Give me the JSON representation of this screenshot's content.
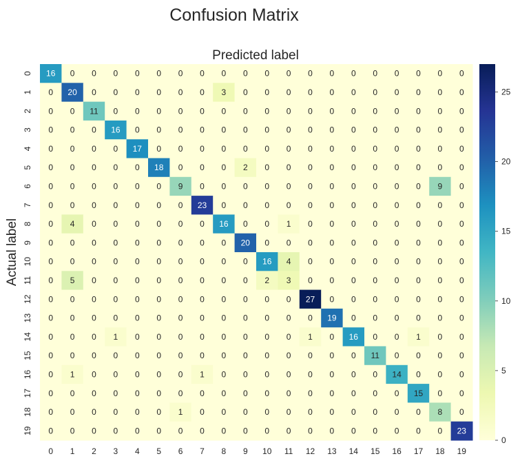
{
  "chart_data": {
    "type": "heatmap",
    "title": "Confusion Matrix",
    "xlabel": "Predicted label",
    "ylabel": "Actual label",
    "x_categories": [
      "0",
      "1",
      "2",
      "3",
      "4",
      "5",
      "6",
      "7",
      "8",
      "9",
      "10",
      "11",
      "12",
      "13",
      "14",
      "15",
      "16",
      "17",
      "18",
      "19"
    ],
    "y_categories": [
      "0",
      "1",
      "2",
      "3",
      "4",
      "5",
      "6",
      "7",
      "8",
      "9",
      "10",
      "11",
      "12",
      "13",
      "14",
      "15",
      "16",
      "17",
      "18",
      "19"
    ],
    "values": [
      [
        16,
        0,
        0,
        0,
        0,
        0,
        0,
        0,
        0,
        0,
        0,
        0,
        0,
        0,
        0,
        0,
        0,
        0,
        0,
        0
      ],
      [
        0,
        20,
        0,
        0,
        0,
        0,
        0,
        0,
        3,
        0,
        0,
        0,
        0,
        0,
        0,
        0,
        0,
        0,
        0,
        0
      ],
      [
        0,
        0,
        11,
        0,
        0,
        0,
        0,
        0,
        0,
        0,
        0,
        0,
        0,
        0,
        0,
        0,
        0,
        0,
        0,
        0
      ],
      [
        0,
        0,
        0,
        16,
        0,
        0,
        0,
        0,
        0,
        0,
        0,
        0,
        0,
        0,
        0,
        0,
        0,
        0,
        0,
        0
      ],
      [
        0,
        0,
        0,
        0,
        17,
        0,
        0,
        0,
        0,
        0,
        0,
        0,
        0,
        0,
        0,
        0,
        0,
        0,
        0,
        0
      ],
      [
        0,
        0,
        0,
        0,
        0,
        18,
        0,
        0,
        0,
        2,
        0,
        0,
        0,
        0,
        0,
        0,
        0,
        0,
        0,
        0
      ],
      [
        0,
        0,
        0,
        0,
        0,
        0,
        9,
        0,
        0,
        0,
        0,
        0,
        0,
        0,
        0,
        0,
        0,
        0,
        9,
        0
      ],
      [
        0,
        0,
        0,
        0,
        0,
        0,
        0,
        23,
        0,
        0,
        0,
        0,
        0,
        0,
        0,
        0,
        0,
        0,
        0,
        0
      ],
      [
        0,
        4,
        0,
        0,
        0,
        0,
        0,
        0,
        16,
        0,
        0,
        1,
        0,
        0,
        0,
        0,
        0,
        0,
        0,
        0
      ],
      [
        0,
        0,
        0,
        0,
        0,
        0,
        0,
        0,
        0,
        20,
        0,
        0,
        0,
        0,
        0,
        0,
        0,
        0,
        0,
        0
      ],
      [
        0,
        0,
        0,
        0,
        0,
        0,
        0,
        0,
        0,
        0,
        16,
        4,
        0,
        0,
        0,
        0,
        0,
        0,
        0,
        0
      ],
      [
        0,
        5,
        0,
        0,
        0,
        0,
        0,
        0,
        0,
        0,
        2,
        3,
        0,
        0,
        0,
        0,
        0,
        0,
        0,
        0
      ],
      [
        0,
        0,
        0,
        0,
        0,
        0,
        0,
        0,
        0,
        0,
        0,
        0,
        27,
        0,
        0,
        0,
        0,
        0,
        0,
        0
      ],
      [
        0,
        0,
        0,
        0,
        0,
        0,
        0,
        0,
        0,
        0,
        0,
        0,
        0,
        19,
        0,
        0,
        0,
        0,
        0,
        0
      ],
      [
        0,
        0,
        0,
        1,
        0,
        0,
        0,
        0,
        0,
        0,
        0,
        0,
        1,
        0,
        16,
        0,
        0,
        1,
        0,
        0
      ],
      [
        0,
        0,
        0,
        0,
        0,
        0,
        0,
        0,
        0,
        0,
        0,
        0,
        0,
        0,
        0,
        11,
        0,
        0,
        0,
        0
      ],
      [
        0,
        1,
        0,
        0,
        0,
        0,
        0,
        1,
        0,
        0,
        0,
        0,
        0,
        0,
        0,
        0,
        14,
        0,
        0,
        0
      ],
      [
        0,
        0,
        0,
        0,
        0,
        0,
        0,
        0,
        0,
        0,
        0,
        0,
        0,
        0,
        0,
        0,
        0,
        15,
        0,
        0
      ],
      [
        0,
        0,
        0,
        0,
        0,
        0,
        1,
        0,
        0,
        0,
        0,
        0,
        0,
        0,
        0,
        0,
        0,
        0,
        8,
        0
      ],
      [
        0,
        0,
        0,
        0,
        0,
        0,
        0,
        0,
        0,
        0,
        0,
        0,
        0,
        0,
        0,
        0,
        0,
        0,
        0,
        23
      ]
    ],
    "colormap": "YlGnBu",
    "vmin": 0,
    "vmax": 27,
    "colorbar_ticks": [
      0,
      5,
      10,
      15,
      20,
      25
    ],
    "grid": false
  }
}
